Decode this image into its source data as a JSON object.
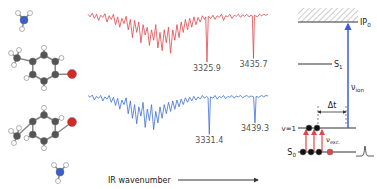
{
  "chart_data": [
    {
      "type": "line",
      "color": "#e0474c",
      "xlim": [
        3045,
        3470
      ],
      "ylim": [
        -1.15,
        0.12
      ],
      "tick_labels": false,
      "grid": false,
      "x": [
        3045,
        3050,
        3055,
        3060,
        3065,
        3070,
        3075,
        3080,
        3085,
        3090,
        3095,
        3100,
        3105,
        3110,
        3115,
        3120,
        3125,
        3130,
        3135,
        3140,
        3145,
        3150,
        3155,
        3160,
        3165,
        3170,
        3175,
        3180,
        3185,
        3190,
        3195,
        3200,
        3205,
        3210,
        3215,
        3220,
        3225,
        3230,
        3235,
        3240,
        3245,
        3250,
        3255,
        3260,
        3265,
        3270,
        3275,
        3280,
        3285,
        3290,
        3295,
        3300,
        3305,
        3310,
        3315,
        3320,
        3323,
        3325.9,
        3329,
        3335,
        3340,
        3345,
        3350,
        3355,
        3360,
        3365,
        3370,
        3375,
        3380,
        3385,
        3390,
        3395,
        3400,
        3405,
        3410,
        3415,
        3420,
        3425,
        3430,
        3433,
        3435.7,
        3438,
        3445,
        3450,
        3455,
        3460,
        3465,
        3470
      ],
      "values": [
        0,
        -0.05,
        0.02,
        -0.08,
        0,
        -0.12,
        -0.02,
        -0.06,
        0.01,
        -0.15,
        -0.03,
        -0.1,
        0,
        -0.2,
        -0.05,
        -0.25,
        -0.08,
        -0.18,
        -0.04,
        -0.3,
        -0.1,
        -0.45,
        -0.12,
        -0.35,
        -0.15,
        -0.55,
        -0.2,
        -0.4,
        -0.25,
        -0.6,
        -0.3,
        -0.5,
        -0.2,
        -0.65,
        -0.35,
        -0.7,
        -0.3,
        -0.55,
        -0.25,
        -0.75,
        -0.3,
        -0.5,
        -0.2,
        -0.45,
        -0.15,
        -0.35,
        -0.1,
        -0.3,
        -0.08,
        -0.25,
        -0.05,
        -0.2,
        -0.06,
        -0.15,
        -0.03,
        -0.1,
        -0.05,
        -0.92,
        -0.04,
        -0.08,
        -0.02,
        -0.1,
        -0.03,
        -0.06,
        0,
        -0.12,
        -0.03,
        -0.05,
        0,
        -0.08,
        -0.02,
        -0.04,
        0,
        -0.06,
        -0.01,
        -0.04,
        0,
        -0.05,
        -0.02,
        -0.03,
        -0.85,
        -0.02,
        -0.05,
        0,
        -0.03,
        0,
        -0.02,
        0
      ],
      "annotations": [
        {
          "x": 3325.9,
          "y": -0.92,
          "text": "3325.9"
        },
        {
          "x": 3435.7,
          "y": -0.85,
          "text": "3435.7"
        }
      ]
    },
    {
      "type": "line",
      "color": "#3f6fd8",
      "xlim": [
        3045,
        3470
      ],
      "ylim": [
        -1.15,
        0.12
      ],
      "tick_labels": false,
      "grid": false,
      "x": [
        3045,
        3050,
        3055,
        3060,
        3065,
        3070,
        3075,
        3080,
        3085,
        3090,
        3095,
        3100,
        3105,
        3110,
        3115,
        3120,
        3125,
        3130,
        3135,
        3140,
        3145,
        3150,
        3155,
        3160,
        3165,
        3170,
        3175,
        3180,
        3185,
        3190,
        3195,
        3200,
        3205,
        3210,
        3215,
        3220,
        3225,
        3230,
        3235,
        3240,
        3245,
        3250,
        3255,
        3260,
        3265,
        3270,
        3275,
        3280,
        3285,
        3290,
        3295,
        3300,
        3305,
        3310,
        3315,
        3320,
        3325,
        3328.5,
        3331.4,
        3334,
        3340,
        3345,
        3350,
        3355,
        3360,
        3365,
        3370,
        3375,
        3380,
        3385,
        3390,
        3395,
        3400,
        3405,
        3410,
        3415,
        3420,
        3425,
        3430,
        3436,
        3439.3,
        3442,
        3448,
        3455,
        3460,
        3465,
        3470
      ],
      "values": [
        0,
        -0.04,
        0.01,
        -0.1,
        -0.02,
        -0.06,
        0,
        -0.12,
        -0.03,
        -0.08,
        0,
        -0.15,
        -0.04,
        -0.22,
        -0.06,
        -0.3,
        -0.1,
        -0.2,
        -0.05,
        -0.4,
        -0.12,
        -0.5,
        -0.2,
        -0.62,
        -0.25,
        -0.45,
        -0.15,
        -0.7,
        -0.3,
        -0.55,
        -0.2,
        -0.75,
        -0.35,
        -0.6,
        -0.25,
        -0.5,
        -0.2,
        -0.4,
        -0.15,
        -0.35,
        -0.12,
        -0.3,
        -0.1,
        -0.25,
        -0.08,
        -0.2,
        -0.05,
        -0.15,
        -0.04,
        -0.12,
        -0.02,
        -0.1,
        -0.03,
        -0.08,
        0,
        -0.06,
        -0.02,
        -0.05,
        -0.85,
        -0.03,
        -0.06,
        0,
        -0.08,
        -0.02,
        -0.05,
        0,
        -0.07,
        -0.02,
        -0.04,
        0,
        -0.06,
        -0.01,
        -0.03,
        0,
        -0.05,
        -0.02,
        0,
        -0.04,
        -0.01,
        -0.03,
        -0.6,
        -0.02,
        -0.04,
        0,
        -0.03,
        0,
        -0.01
      ],
      "annotations": [
        {
          "x": 3331.4,
          "y": -0.85,
          "text": "3331.4"
        },
        {
          "x": 3439.3,
          "y": -0.6,
          "text": "3439.3"
        }
      ]
    }
  ],
  "axis_label": "IR wavenumber",
  "energy_diagram": {
    "levels": [
      {
        "text": "IP",
        "sub": "0"
      },
      {
        "text": "S",
        "sub": "1"
      },
      {
        "text": "v=1"
      },
      {
        "text": "S",
        "sub": "0"
      }
    ],
    "ionization": {
      "text": "ν",
      "sub": "ion"
    },
    "excitation": {
      "text": "ν",
      "sub": "exc."
    },
    "time_delay": {
      "text": "Δt"
    }
  }
}
